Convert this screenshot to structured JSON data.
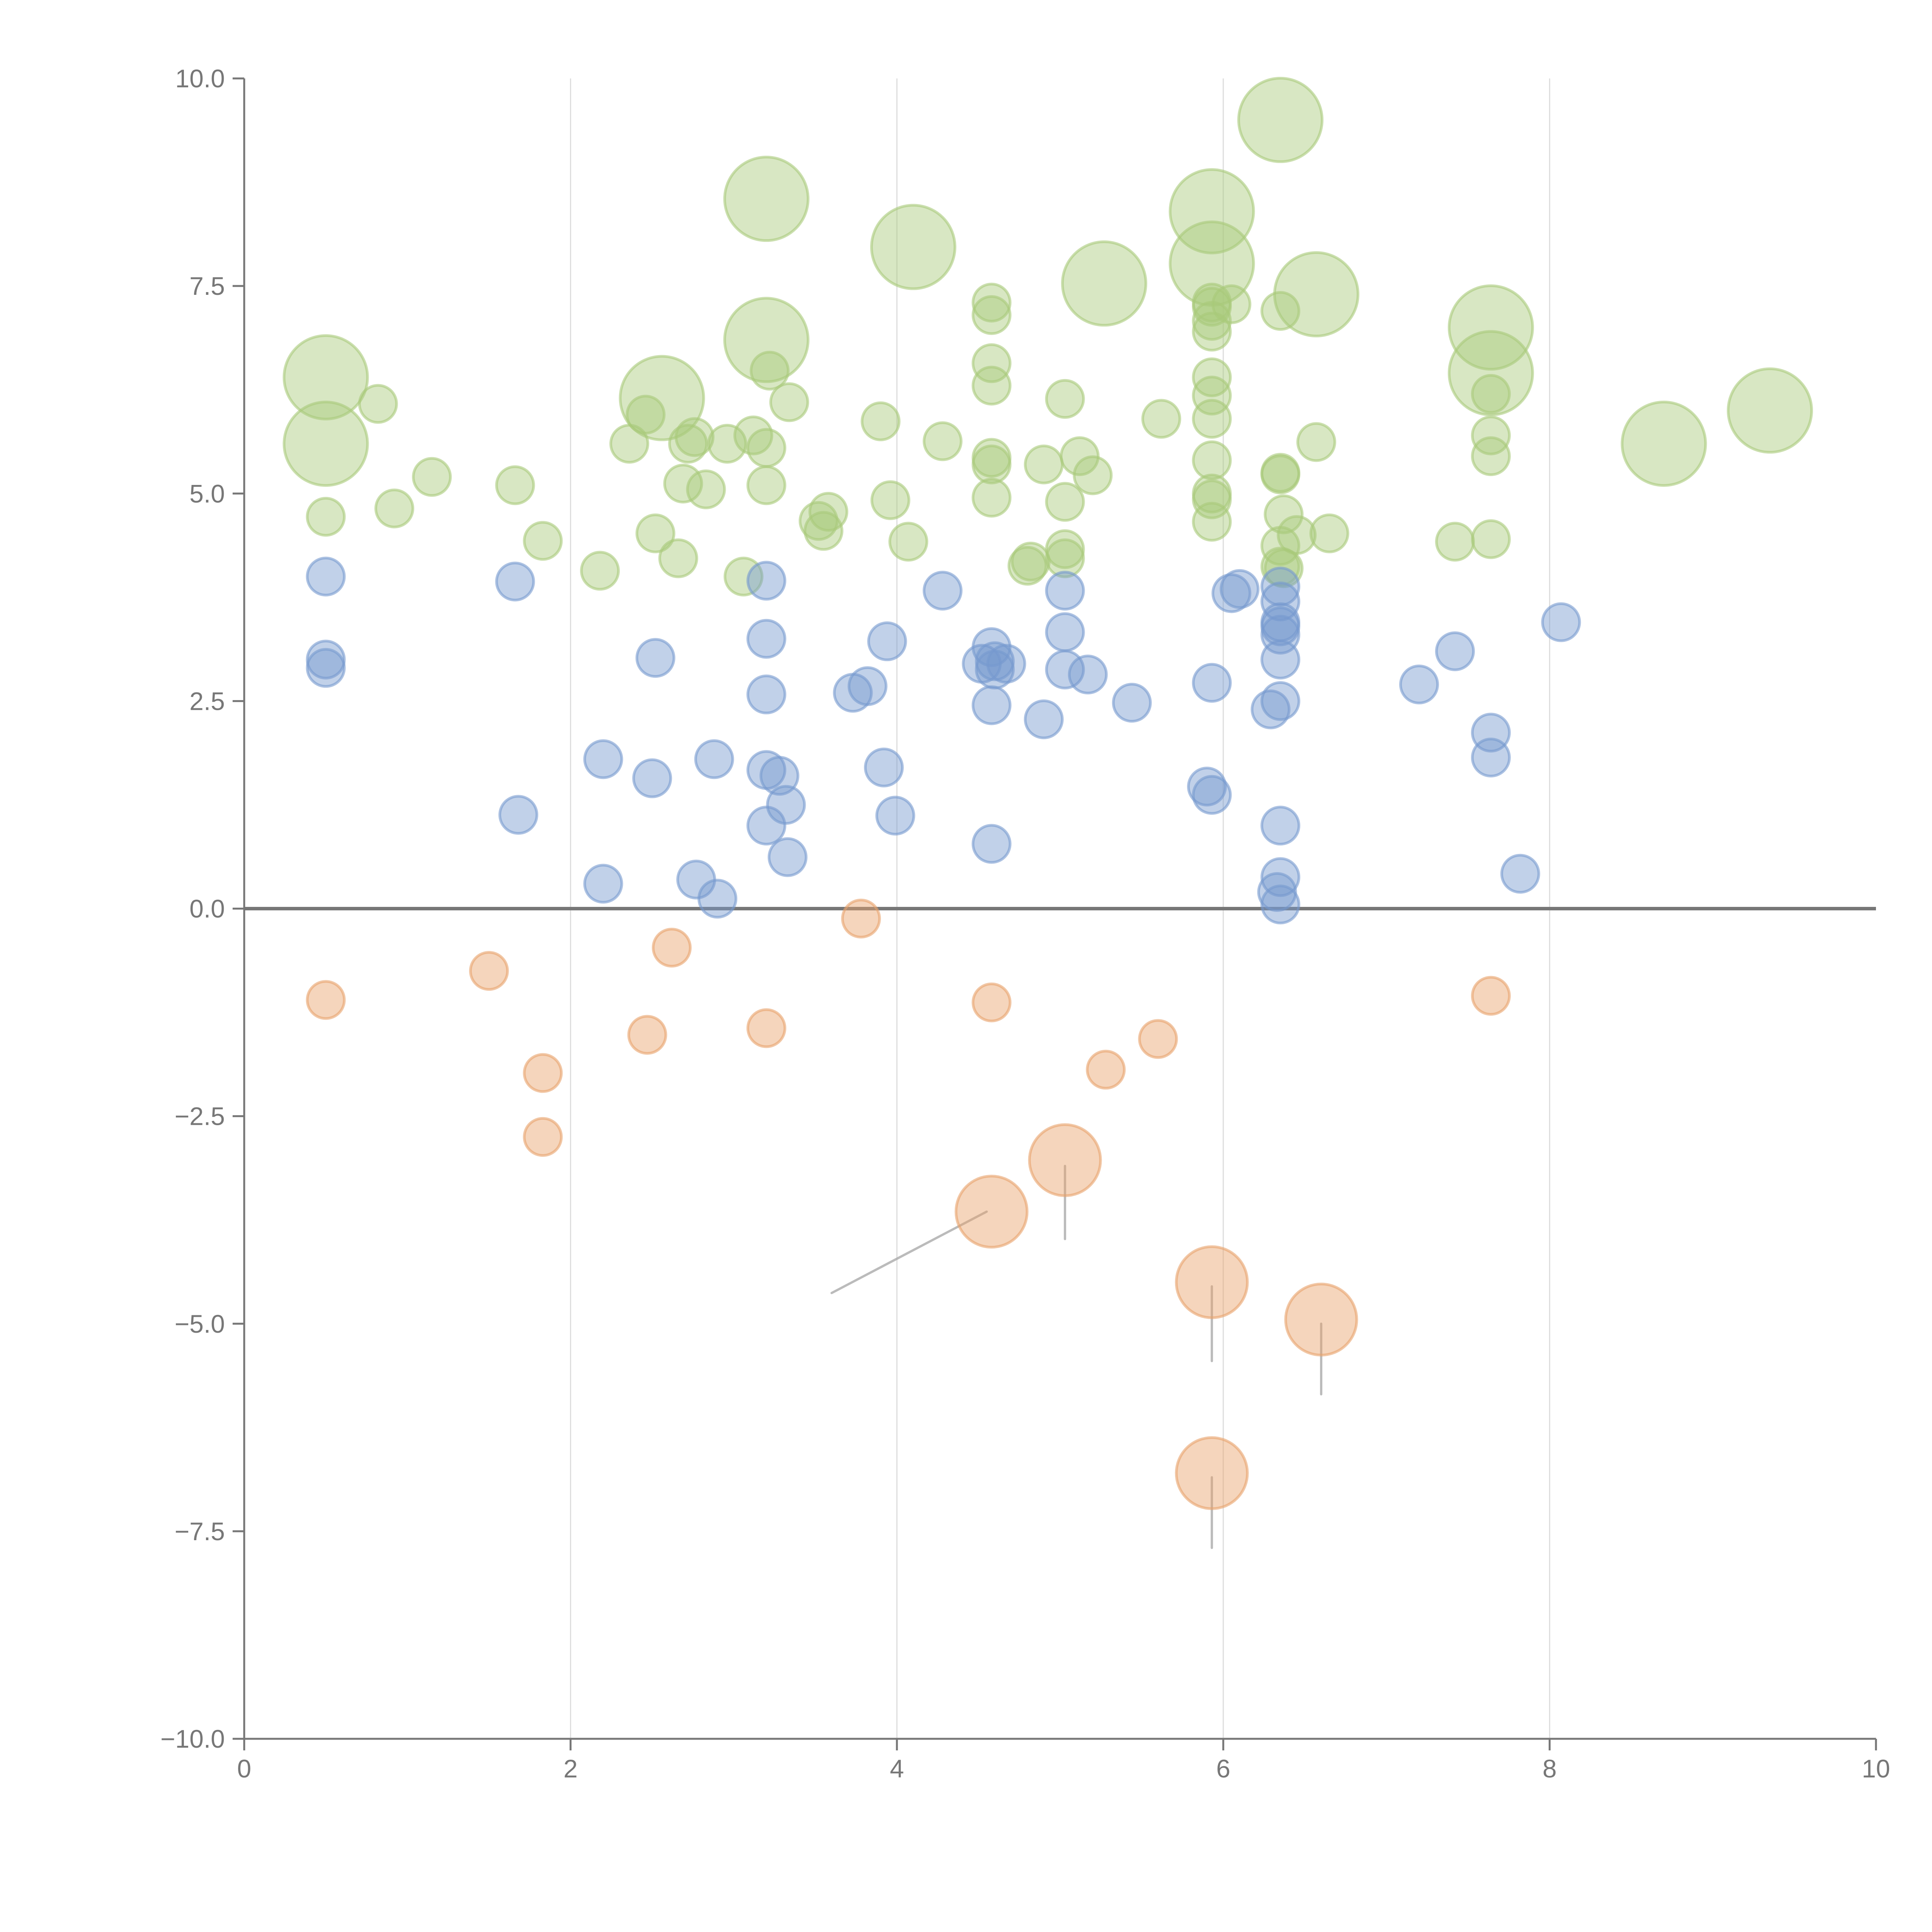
{
  "chart_data": {
    "type": "scatter",
    "title": "",
    "xlabel": "",
    "ylabel": "",
    "xlim": [
      0,
      10
    ],
    "ylim": [
      -10,
      10
    ],
    "x_ticks": [
      "0",
      "2",
      "4",
      "6",
      "8",
      "10"
    ],
    "y_ticks": [
      "10.0",
      "7.5",
      "5.0",
      "2.5",
      "0.0",
      "−2.5",
      "−5.0",
      "−7.5",
      "−10.0"
    ],
    "grid": "vertical at x ticks",
    "reference_line_y": 0,
    "colors": {
      "green": "#a9c97a",
      "blue": "#7699cf",
      "orange": "#e8a26a",
      "axis": "#777777"
    },
    "series": [
      {
        "name": "green",
        "color": "#a9c97a",
        "large": [
          [
            0.5,
            6.4
          ],
          [
            0.5,
            5.6
          ],
          [
            2.56,
            6.15
          ],
          [
            3.2,
            8.55
          ],
          [
            3.2,
            6.85
          ],
          [
            4.1,
            7.97
          ],
          [
            5.27,
            7.53
          ],
          [
            5.93,
            8.4
          ],
          [
            5.93,
            7.77
          ],
          [
            6.35,
            9.5
          ],
          [
            6.57,
            7.4
          ],
          [
            7.64,
            7.0
          ],
          [
            7.64,
            6.45
          ],
          [
            8.7,
            5.6
          ],
          [
            9.35,
            6.0
          ]
        ],
        "small": [
          [
            0.82,
            6.08
          ],
          [
            1.15,
            5.2
          ],
          [
            0.5,
            4.72
          ],
          [
            0.92,
            4.82
          ],
          [
            1.66,
            5.1
          ],
          [
            1.83,
            4.43
          ],
          [
            2.18,
            4.07
          ],
          [
            2.36,
            5.6
          ],
          [
            2.46,
            5.95
          ],
          [
            2.52,
            4.52
          ],
          [
            2.66,
            4.22
          ],
          [
            2.72,
            5.6
          ],
          [
            2.76,
            5.68
          ],
          [
            2.69,
            5.12
          ],
          [
            2.83,
            5.05
          ],
          [
            2.96,
            5.6
          ],
          [
            3.06,
            4.0
          ],
          [
            3.12,
            5.7
          ],
          [
            3.2,
            5.55
          ],
          [
            3.2,
            5.1
          ],
          [
            3.22,
            6.48
          ],
          [
            3.34,
            6.1
          ],
          [
            3.52,
            4.67
          ],
          [
            3.55,
            4.55
          ],
          [
            3.58,
            4.78
          ],
          [
            3.9,
            5.87
          ],
          [
            3.96,
            4.92
          ],
          [
            4.07,
            4.42
          ],
          [
            4.28,
            5.63
          ],
          [
            4.58,
            7.3
          ],
          [
            4.58,
            7.15
          ],
          [
            4.58,
            6.57
          ],
          [
            4.58,
            6.3
          ],
          [
            4.58,
            5.43
          ],
          [
            4.58,
            5.35
          ],
          [
            4.58,
            4.95
          ],
          [
            4.8,
            4.13
          ],
          [
            4.82,
            4.18
          ],
          [
            4.9,
            5.35
          ],
          [
            5.03,
            6.14
          ],
          [
            5.03,
            4.9
          ],
          [
            5.03,
            4.33
          ],
          [
            5.03,
            4.22
          ],
          [
            5.12,
            5.45
          ],
          [
            5.2,
            5.22
          ],
          [
            5.62,
            5.9
          ],
          [
            5.93,
            7.3
          ],
          [
            5.93,
            7.25
          ],
          [
            5.93,
            7.08
          ],
          [
            5.93,
            6.95
          ],
          [
            5.93,
            6.4
          ],
          [
            5.93,
            6.18
          ],
          [
            5.93,
            5.9
          ],
          [
            5.93,
            5.4
          ],
          [
            5.93,
            5.0
          ],
          [
            5.93,
            4.93
          ],
          [
            5.93,
            4.66
          ],
          [
            6.05,
            7.28
          ],
          [
            6.35,
            7.2
          ],
          [
            6.35,
            5.25
          ],
          [
            6.35,
            5.23
          ],
          [
            6.37,
            4.75
          ],
          [
            6.35,
            4.37
          ],
          [
            6.35,
            4.12
          ],
          [
            6.37,
            4.1
          ],
          [
            6.45,
            4.5
          ],
          [
            6.57,
            5.62
          ],
          [
            6.65,
            4.52
          ],
          [
            7.42,
            4.42
          ],
          [
            7.64,
            6.2
          ],
          [
            7.64,
            5.7
          ],
          [
            7.64,
            5.45
          ],
          [
            7.64,
            4.45
          ]
        ]
      },
      {
        "name": "blue",
        "color": "#7699cf",
        "large": [],
        "small": [
          [
            0.5,
            4.0
          ],
          [
            0.5,
            3.0
          ],
          [
            0.5,
            2.9
          ],
          [
            1.66,
            3.94
          ],
          [
            1.68,
            1.13
          ],
          [
            2.2,
            1.8
          ],
          [
            2.2,
            0.3
          ],
          [
            2.5,
            1.57
          ],
          [
            2.52,
            3.02
          ],
          [
            2.77,
            0.35
          ],
          [
            2.88,
            1.8
          ],
          [
            2.9,
            0.12
          ],
          [
            3.2,
            3.95
          ],
          [
            3.2,
            3.25
          ],
          [
            3.2,
            2.58
          ],
          [
            3.2,
            1.67
          ],
          [
            3.2,
            1.0
          ],
          [
            3.28,
            1.6
          ],
          [
            3.32,
            1.25
          ],
          [
            3.33,
            0.62
          ],
          [
            3.73,
            2.6
          ],
          [
            3.82,
            2.68
          ],
          [
            3.92,
            1.7
          ],
          [
            3.94,
            3.22
          ],
          [
            3.99,
            1.12
          ],
          [
            4.28,
            3.83
          ],
          [
            4.52,
            2.95
          ],
          [
            4.58,
            3.15
          ],
          [
            4.6,
            2.98
          ],
          [
            4.6,
            2.88
          ],
          [
            4.67,
            2.95
          ],
          [
            4.58,
            2.45
          ],
          [
            4.58,
            0.78
          ],
          [
            4.9,
            2.28
          ],
          [
            5.03,
            3.83
          ],
          [
            5.03,
            3.33
          ],
          [
            5.03,
            2.88
          ],
          [
            5.17,
            2.82
          ],
          [
            5.44,
            2.48
          ],
          [
            5.9,
            1.47
          ],
          [
            5.93,
            1.37
          ],
          [
            5.93,
            2.72
          ],
          [
            6.05,
            3.8
          ],
          [
            6.1,
            3.85
          ],
          [
            6.29,
            2.4
          ],
          [
            6.35,
            3.88
          ],
          [
            6.35,
            3.7
          ],
          [
            6.35,
            3.45
          ],
          [
            6.35,
            3.4
          ],
          [
            6.35,
            3.3
          ],
          [
            6.35,
            3.0
          ],
          [
            6.35,
            2.5
          ],
          [
            6.35,
            1.0
          ],
          [
            6.35,
            0.38
          ],
          [
            6.33,
            0.2
          ],
          [
            6.35,
            0.05
          ],
          [
            7.2,
            2.7
          ],
          [
            7.42,
            3.1
          ],
          [
            7.64,
            2.12
          ],
          [
            7.64,
            1.82
          ],
          [
            7.82,
            0.42
          ],
          [
            8.07,
            3.45
          ]
        ]
      },
      {
        "name": "orange",
        "color": "#e8a26a",
        "large": [
          [
            4.58,
            -3.65
          ],
          [
            5.03,
            -3.03
          ],
          [
            5.93,
            -4.5
          ],
          [
            6.6,
            -4.95
          ],
          [
            5.93,
            -6.8
          ]
        ],
        "small": [
          [
            0.5,
            -1.1
          ],
          [
            1.5,
            -0.75
          ],
          [
            1.83,
            -1.98
          ],
          [
            1.83,
            -2.75
          ],
          [
            2.47,
            -1.52
          ],
          [
            2.62,
            -0.47
          ],
          [
            3.2,
            -1.44
          ],
          [
            3.78,
            -0.12
          ],
          [
            4.58,
            -1.13
          ],
          [
            5.28,
            -1.94
          ],
          [
            5.6,
            -1.57
          ],
          [
            7.64,
            -1.05
          ]
        ]
      }
    ]
  }
}
